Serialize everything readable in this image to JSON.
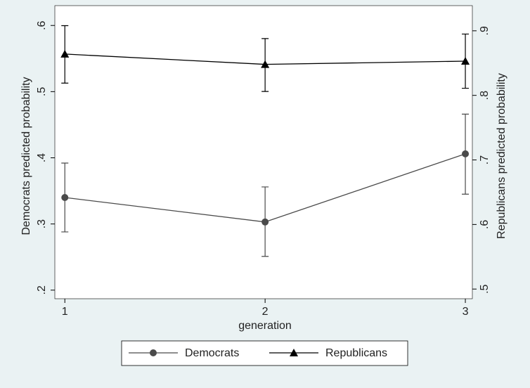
{
  "chart_data": {
    "type": "line",
    "x_label": "generation",
    "y_label": "Democrats predicted probability",
    "y2_label": "Republicans predicted probability",
    "x": [
      1,
      2,
      3
    ],
    "xlim": [
      0.95,
      3.035
    ],
    "xticks": [
      1,
      2,
      3
    ],
    "ylim": [
      0.187,
      0.63
    ],
    "yticks": [
      {
        "value": 0.2,
        "label": ".2"
      },
      {
        "value": 0.3,
        "label": ".3"
      },
      {
        "value": 0.4,
        "label": ".4"
      },
      {
        "value": 0.5,
        "label": ".5"
      },
      {
        "value": 0.6,
        "label": ".6"
      }
    ],
    "y2lim": [
      0.485,
      0.939
    ],
    "y2ticks": [
      {
        "value": 0.5,
        "label": ".5"
      },
      {
        "value": 0.6,
        "label": ".6"
      },
      {
        "value": 0.7,
        "label": ".7"
      },
      {
        "value": 0.8,
        "label": ".8"
      },
      {
        "value": 0.9,
        "label": ".9"
      }
    ],
    "grid": false,
    "legend": "bottom",
    "series": [
      {
        "name": "Democrats",
        "color": "#4a4a4a",
        "marker": "circle",
        "axis": "y",
        "values": [
          0.34,
          0.303,
          0.406
        ],
        "ci_low": [
          0.288,
          0.251,
          0.345
        ],
        "ci_high": [
          0.392,
          0.356,
          0.466
        ]
      },
      {
        "name": "Republicans",
        "color": "#000000",
        "marker": "triangle",
        "axis": "y2",
        "values": [
          0.864,
          0.848,
          0.853
        ],
        "ci_low": [
          0.819,
          0.806,
          0.811
        ],
        "ci_high": [
          0.908,
          0.888,
          0.895
        ]
      }
    ]
  }
}
